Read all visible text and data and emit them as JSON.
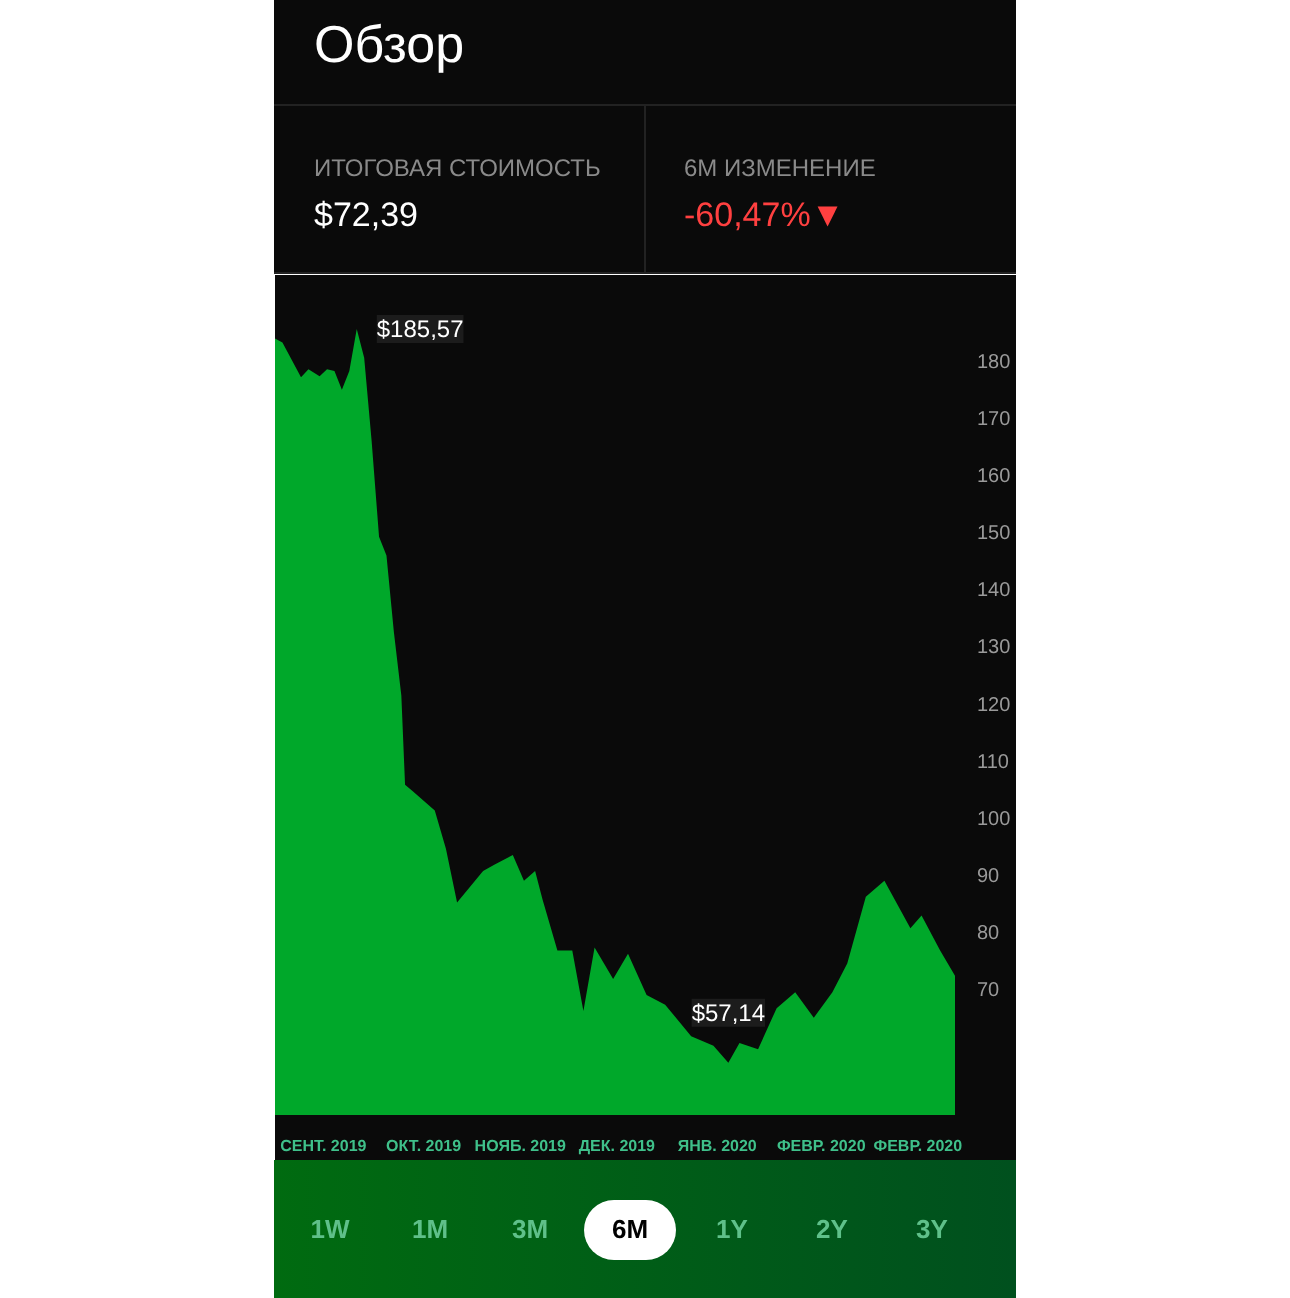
{
  "chart_data": {
    "type": "area",
    "title": "Обзор",
    "annotations": [
      "ИТОГОВАЯ СТОИМОСТЬ",
      "$72,39",
      "6M ИЗМЕНЕНИЕ",
      "-60,47%▼",
      "1W",
      "1M",
      "3M",
      "6M",
      "1Y",
      "2Y",
      "3Y",
      {
        "text": "$185,57",
        "x": "2019-09-29",
        "y": 185.57
      },
      {
        "text": "$57,14",
        "x": "2020-01-07",
        "y": 57.14
      }
    ],
    "x": [
      "2019-09-07",
      "2019-09-09",
      "2019-09-14",
      "2019-09-16",
      "2019-09-19",
      "2019-09-21",
      "2019-09-23",
      "2019-09-25",
      "2019-09-27",
      "2019-09-29",
      "2019-10-01",
      "2019-10-03",
      "2019-10-05",
      "2019-10-07",
      "2019-10-09",
      "2019-10-11",
      "2019-10-12",
      "2019-10-14",
      "2019-10-20",
      "2019-10-23",
      "2019-10-26",
      "2019-11-02",
      "2019-11-05",
      "2019-11-10",
      "2019-11-13",
      "2019-11-16",
      "2019-11-18",
      "2019-11-22",
      "2019-11-26",
      "2019-11-29",
      "2019-12-02",
      "2019-12-07",
      "2019-12-11",
      "2019-12-16",
      "2019-12-21",
      "2019-12-28",
      "2020-01-03",
      "2020-01-07",
      "2020-01-10",
      "2020-01-15",
      "2020-01-20",
      "2020-01-25",
      "2020-01-30",
      "2020-02-04",
      "2020-02-08",
      "2020-02-13",
      "2020-02-18",
      "2020-02-25",
      "2020-02-28",
      "2020-03-04",
      "2020-03-08"
    ],
    "series": [
      {
        "color": "#00a82a",
        "values": [
          183.9,
          183.2,
          177.1,
          178.5,
          177.3,
          178.5,
          178.2,
          174.9,
          178.2,
          185.57,
          180.5,
          166,
          149.2,
          145.9,
          132.5,
          121.4,
          105.8,
          104.7,
          101.3,
          94.6,
          85.2,
          90.7,
          91.8,
          93.5,
          89.0,
          90.7,
          85.7,
          76.8,
          76.8,
          66.2,
          77.3,
          71.8,
          76.2,
          69.0,
          67.3,
          61.8,
          60.1,
          57.14,
          60.6,
          59.5,
          66.7,
          69.5,
          65.0,
          69.5,
          74.5,
          86.2,
          89.0,
          80.7,
          82.9,
          76.8,
          72.39
        ]
      }
    ],
    "xlim": [
      "2019-09-07",
      "2020-03-08"
    ],
    "xticks": [
      {
        "value": "2019-09-20",
        "label": "СЕНТ. 2019"
      },
      {
        "value": "2019-10-17",
        "label": "ОКТ. 2019"
      },
      {
        "value": "2019-11-12",
        "label": "НОЯБ. 2019"
      },
      {
        "value": "2019-12-08",
        "label": "ДЕК. 2019"
      },
      {
        "value": "2020-01-04",
        "label": "ЯНВ. 2020"
      },
      {
        "value": "2020-02-01",
        "label": "ФЕВР. 2020"
      },
      {
        "value": "2020-02-27",
        "label": "ФЕВР. 2020"
      }
    ],
    "ylim": [
      48,
      195
    ],
    "yticks": [
      70,
      80,
      90,
      100,
      110,
      120,
      130,
      140,
      150,
      160,
      170,
      180
    ],
    "grid": false
  }
}
